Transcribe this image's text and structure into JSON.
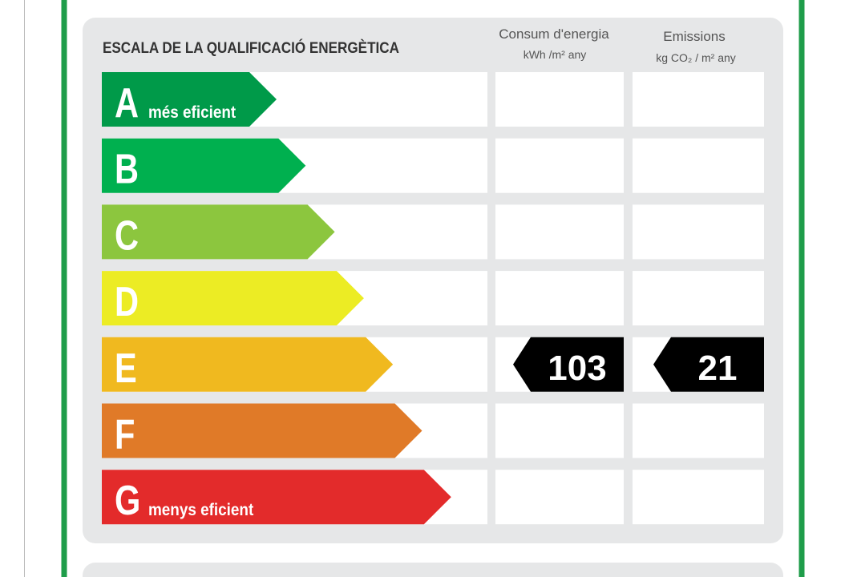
{
  "header": {
    "title": "ESCALA DE LA QUALIFICACIÓ ENERGÈTICA",
    "columns": [
      {
        "title": "Consum d'energia",
        "unit": "kWh /m² any"
      },
      {
        "title": "Emissions",
        "unit": "kg CO₂ / m² any"
      }
    ]
  },
  "ratings": [
    {
      "letter": "A",
      "label": "més eficient",
      "color": "#009a49"
    },
    {
      "letter": "B",
      "color": "#00b04f"
    },
    {
      "letter": "C",
      "color": "#8cc63e"
    },
    {
      "letter": "D",
      "color": "#ecec24"
    },
    {
      "letter": "E",
      "color": "#f0b91f"
    },
    {
      "letter": "F",
      "color": "#e07a28"
    },
    {
      "letter": "G",
      "label": "menys eficient",
      "color": "#e32b2b"
    }
  ],
  "result": {
    "rating": "E",
    "consumption": 103,
    "emissions": 21
  }
}
